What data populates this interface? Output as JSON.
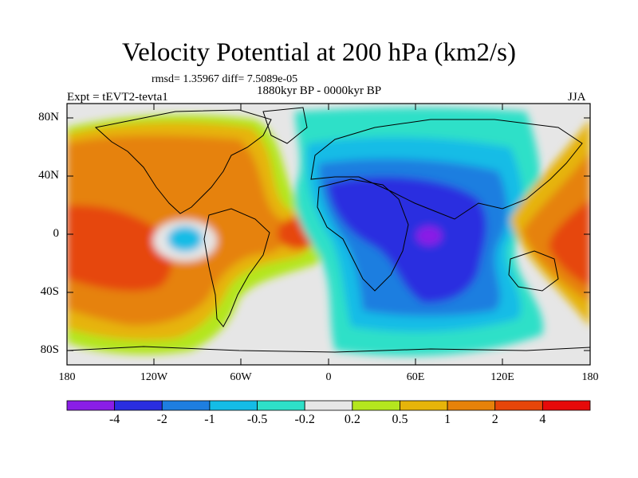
{
  "title": "Velocity Potential at 200 hPa (km2/s)",
  "stats": "rmsd= 1.35967 diff= 7.5089e-05",
  "period": "1880kyr BP - 0000kyr BP",
  "experiment": "Expt = tEVT2-tevta1",
  "season": "JJA",
  "y_ticks": [
    "80N",
    "40N",
    "0",
    "40S",
    "80S"
  ],
  "x_ticks": [
    "180",
    "120W",
    "60W",
    "0",
    "60E",
    "120E",
    "180"
  ],
  "colorbar": {
    "colors": [
      "#8a1ee6",
      "#2a2ee0",
      "#1e7ee0",
      "#14bce6",
      "#2ee0c8",
      "#e6e6e6",
      "#b4e61e",
      "#e6b40a",
      "#e6820a",
      "#e6460a",
      "#e60a0a"
    ],
    "labels": [
      "-4",
      "-2",
      "-1",
      "-0.5",
      "-0.2",
      "0.2",
      "0.5",
      "1",
      "2",
      "4"
    ]
  }
}
